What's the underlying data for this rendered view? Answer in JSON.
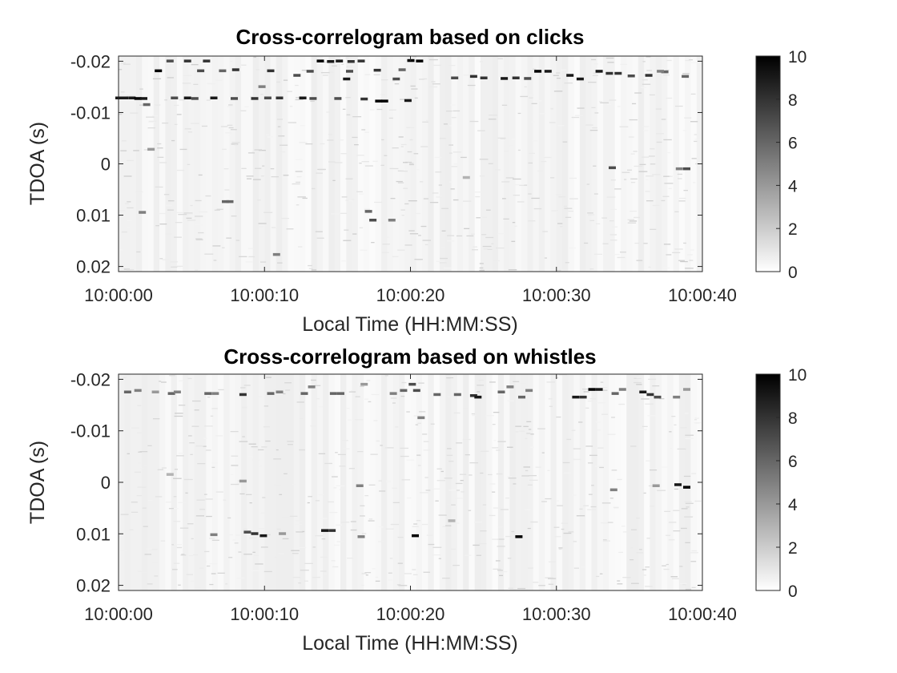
{
  "chart_data": [
    {
      "type": "heatmap",
      "title": "Cross-correlogram based on clicks",
      "xlabel": "Local Time (HH:MM:SS)",
      "ylabel": "TDOA (s)",
      "xlim": [
        0,
        40
      ],
      "ylim": [
        -0.021,
        0.021
      ],
      "y_reversed": true,
      "x_ticks": [
        {
          "value": 0,
          "label": "10:00:00"
        },
        {
          "value": 10,
          "label": "10:00:10"
        },
        {
          "value": 20,
          "label": "10:00:20"
        },
        {
          "value": 30,
          "label": "10:00:30"
        },
        {
          "value": 40,
          "label": "10:00:40"
        }
      ],
      "y_ticks": [
        {
          "value": -0.02,
          "label": "-0.02"
        },
        {
          "value": -0.01,
          "label": "-0.01"
        },
        {
          "value": 0,
          "label": "0"
        },
        {
          "value": 0.01,
          "label": "0.01"
        },
        {
          "value": 0.02,
          "label": "0.02"
        }
      ],
      "colorbar": {
        "range": [
          0,
          10
        ],
        "ticks": [
          {
            "value": 0,
            "label": "0"
          },
          {
            "value": 2,
            "label": "2"
          },
          {
            "value": 4,
            "label": "4"
          },
          {
            "value": 6,
            "label": "6"
          },
          {
            "value": 8,
            "label": "8"
          },
          {
            "value": 10,
            "label": "10"
          }
        ],
        "colormap": "gray-reversed"
      },
      "detections": [
        [
          0.0,
          -0.0128,
          9
        ],
        [
          0.4,
          -0.0128,
          9
        ],
        [
          0.9,
          -0.0128,
          9
        ],
        [
          1.3,
          -0.0127,
          10
        ],
        [
          1.7,
          -0.0127,
          9
        ],
        [
          3.8,
          -0.0128,
          7
        ],
        [
          4.7,
          -0.0128,
          9
        ],
        [
          5.2,
          -0.0127,
          7
        ],
        [
          6.5,
          -0.0128,
          9
        ],
        [
          7.9,
          -0.0127,
          7
        ],
        [
          9.3,
          -0.0127,
          8
        ],
        [
          10.2,
          -0.0128,
          7
        ],
        [
          11.0,
          -0.0128,
          8
        ],
        [
          12.6,
          -0.0128,
          9
        ],
        [
          13.3,
          -0.0127,
          7
        ],
        [
          15.0,
          -0.0127,
          7
        ],
        [
          16.8,
          -0.0126,
          8
        ],
        [
          17.8,
          -0.0122,
          10
        ],
        [
          18.2,
          -0.0122,
          10
        ],
        [
          19.8,
          -0.0123,
          9
        ],
        [
          13.8,
          -0.02,
          10
        ],
        [
          14.5,
          -0.0199,
          9
        ],
        [
          15.1,
          -0.02,
          9
        ],
        [
          15.9,
          -0.0199,
          8
        ],
        [
          16.6,
          -0.02,
          8
        ],
        [
          4.7,
          -0.02,
          8
        ],
        [
          6.0,
          -0.02,
          8
        ],
        [
          3.5,
          -0.02,
          7
        ],
        [
          20.0,
          -0.0201,
          10
        ],
        [
          20.6,
          -0.02,
          10
        ],
        [
          2.7,
          -0.0181,
          10
        ],
        [
          5.6,
          -0.0181,
          7
        ],
        [
          7.1,
          -0.0181,
          6
        ],
        [
          8.0,
          -0.0183,
          8
        ],
        [
          10.4,
          -0.0181,
          8
        ],
        [
          12.2,
          -0.0172,
          7
        ],
        [
          13.1,
          -0.018,
          7
        ],
        [
          15.8,
          -0.018,
          7
        ],
        [
          17.7,
          -0.0182,
          8
        ],
        [
          19.4,
          -0.0183,
          6
        ],
        [
          15.6,
          -0.0165,
          9
        ],
        [
          19.0,
          -0.0165,
          7
        ],
        [
          23.0,
          -0.0167,
          7
        ],
        [
          24.3,
          -0.017,
          8
        ],
        [
          25.0,
          -0.0167,
          8
        ],
        [
          26.4,
          -0.0166,
          9
        ],
        [
          27.2,
          -0.0167,
          8
        ],
        [
          28.0,
          -0.0166,
          7
        ],
        [
          28.7,
          -0.018,
          10
        ],
        [
          29.4,
          -0.018,
          9
        ],
        [
          30.9,
          -0.0172,
          9
        ],
        [
          31.6,
          -0.0165,
          9
        ],
        [
          32.9,
          -0.018,
          9
        ],
        [
          33.6,
          -0.0176,
          8
        ],
        [
          34.2,
          -0.0176,
          8
        ],
        [
          35.1,
          -0.0171,
          7
        ],
        [
          36.3,
          -0.0172,
          8
        ],
        [
          37.4,
          -0.0179,
          6
        ],
        [
          38.8,
          -0.017,
          6
        ],
        [
          37.1,
          -0.018,
          5
        ],
        [
          9.8,
          -0.015,
          5
        ],
        [
          1.9,
          -0.0115,
          6
        ],
        [
          2.2,
          -0.0028,
          4
        ],
        [
          7.3,
          0.0074,
          6
        ],
        [
          7.6,
          0.0074,
          6
        ],
        [
          1.6,
          0.0095,
          5
        ],
        [
          17.1,
          0.0093,
          6
        ],
        [
          17.4,
          0.011,
          7
        ],
        [
          18.7,
          0.011,
          5
        ],
        [
          10.8,
          0.0177,
          5
        ],
        [
          33.8,
          0.0008,
          7
        ],
        [
          38.4,
          0.001,
          5
        ],
        [
          38.9,
          0.001,
          7
        ],
        [
          23.8,
          0.0027,
          3
        ]
      ]
    },
    {
      "type": "heatmap",
      "title": "Cross-correlogram based on whistles",
      "xlabel": "Local Time (HH:MM:SS)",
      "ylabel": "TDOA (s)",
      "xlim": [
        0,
        40
      ],
      "ylim": [
        -0.021,
        0.021
      ],
      "y_reversed": true,
      "x_ticks": [
        {
          "value": 0,
          "label": "10:00:00"
        },
        {
          "value": 10,
          "label": "10:00:10"
        },
        {
          "value": 20,
          "label": "10:00:20"
        },
        {
          "value": 30,
          "label": "10:00:30"
        },
        {
          "value": 40,
          "label": "10:00:40"
        }
      ],
      "y_ticks": [
        {
          "value": -0.02,
          "label": "-0.02"
        },
        {
          "value": -0.01,
          "label": "-0.01"
        },
        {
          "value": 0,
          "label": "0"
        },
        {
          "value": 0.01,
          "label": "0.01"
        },
        {
          "value": 0.02,
          "label": "0.02"
        }
      ],
      "colorbar": {
        "range": [
          0,
          10
        ],
        "ticks": [
          {
            "value": 0,
            "label": "0"
          },
          {
            "value": 2,
            "label": "2"
          },
          {
            "value": 4,
            "label": "4"
          },
          {
            "value": 6,
            "label": "6"
          },
          {
            "value": 8,
            "label": "8"
          },
          {
            "value": 10,
            "label": "10"
          }
        ],
        "colormap": "gray-reversed"
      },
      "detections": [
        [
          0.6,
          -0.0175,
          6
        ],
        [
          1.3,
          -0.0178,
          5
        ],
        [
          2.5,
          -0.0175,
          4
        ],
        [
          3.6,
          -0.0172,
          6
        ],
        [
          4.0,
          -0.0175,
          5
        ],
        [
          6.1,
          -0.0172,
          6
        ],
        [
          6.6,
          -0.0172,
          5
        ],
        [
          8.5,
          -0.017,
          8
        ],
        [
          10.4,
          -0.0172,
          6
        ],
        [
          11.0,
          -0.0175,
          5
        ],
        [
          12.7,
          -0.0172,
          6
        ],
        [
          13.2,
          -0.0185,
          5
        ],
        [
          14.7,
          -0.0172,
          6
        ],
        [
          15.2,
          -0.0172,
          6
        ],
        [
          16.8,
          -0.019,
          4
        ],
        [
          18.8,
          -0.0172,
          5
        ],
        [
          19.5,
          -0.0178,
          6
        ],
        [
          20.1,
          -0.019,
          7
        ],
        [
          20.4,
          -0.0178,
          7
        ],
        [
          21.8,
          -0.017,
          6
        ],
        [
          23.2,
          -0.017,
          6
        ],
        [
          24.3,
          -0.0168,
          8
        ],
        [
          24.6,
          -0.0165,
          9
        ],
        [
          26.2,
          -0.0175,
          6
        ],
        [
          26.8,
          -0.0185,
          5
        ],
        [
          27.6,
          -0.0165,
          6
        ],
        [
          28.1,
          -0.0178,
          5
        ],
        [
          31.3,
          -0.0165,
          9
        ],
        [
          31.8,
          -0.0165,
          8
        ],
        [
          32.4,
          -0.018,
          10
        ],
        [
          32.9,
          -0.018,
          9
        ],
        [
          34.0,
          -0.0172,
          6
        ],
        [
          34.5,
          -0.018,
          5
        ],
        [
          35.9,
          -0.0175,
          9
        ],
        [
          36.4,
          -0.017,
          8
        ],
        [
          36.9,
          -0.0165,
          7
        ],
        [
          38.2,
          -0.0165,
          5
        ],
        [
          38.9,
          -0.018,
          4
        ],
        [
          20.7,
          -0.0125,
          5
        ],
        [
          8.8,
          0.0097,
          7
        ],
        [
          9.3,
          0.01,
          8
        ],
        [
          9.9,
          0.0104,
          9
        ],
        [
          6.5,
          0.0102,
          5
        ],
        [
          11.2,
          0.01,
          4
        ],
        [
          14.1,
          0.0094,
          9
        ],
        [
          14.6,
          0.0094,
          8
        ],
        [
          16.6,
          0.0106,
          5
        ],
        [
          20.3,
          0.0104,
          10
        ],
        [
          27.4,
          0.0106,
          10
        ],
        [
          33.9,
          0.0015,
          5
        ],
        [
          36.8,
          0.0007,
          4
        ],
        [
          38.3,
          0.0005,
          9
        ],
        [
          38.9,
          0.001,
          10
        ],
        [
          8.5,
          -0.0002,
          4
        ],
        [
          16.5,
          0.0007,
          5
        ],
        [
          22.8,
          0.0075,
          3
        ],
        [
          3.5,
          -0.0015,
          3
        ]
      ]
    }
  ]
}
